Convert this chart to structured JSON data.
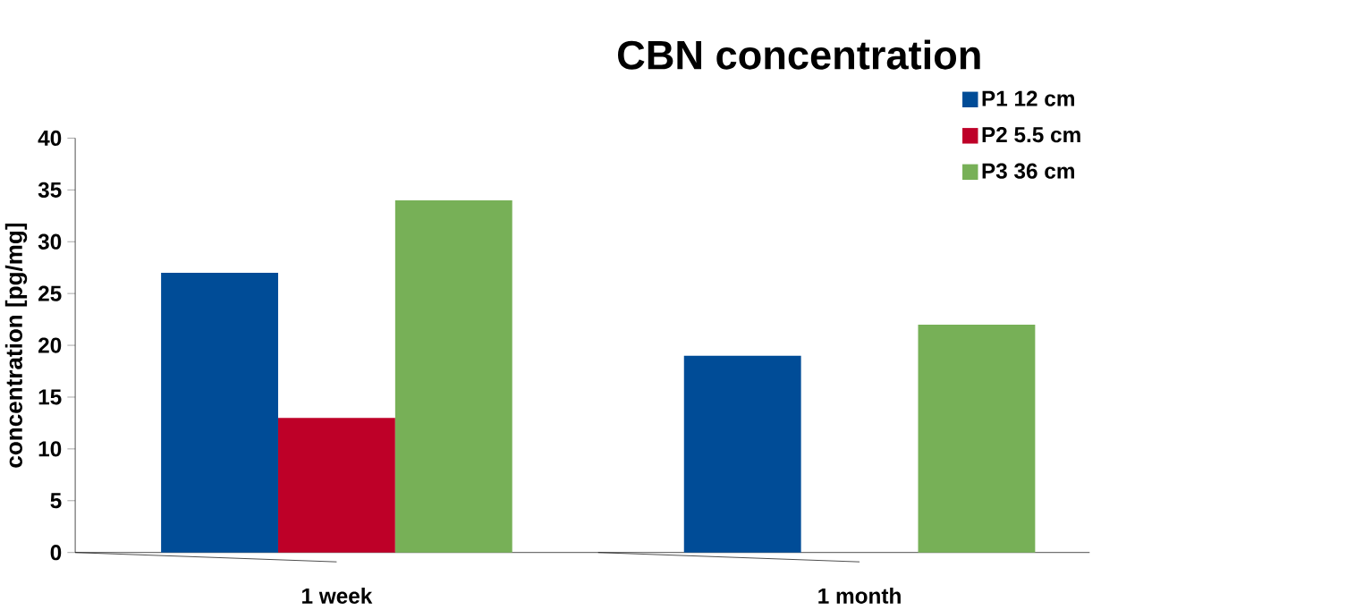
{
  "chart_data": {
    "type": "bar",
    "title": "CBN concentration",
    "ylabel": "concentration [pg/mg]",
    "categories": [
      "1 week",
      "1 month"
    ],
    "series": [
      {
        "name": "P1 12 cm",
        "color": "#004c97",
        "values": [
          27,
          19
        ]
      },
      {
        "name": "P2 5.5 cm",
        "color": "#be0028",
        "values": [
          13,
          null
        ]
      },
      {
        "name": "P3 36 cm",
        "color": "#77b057",
        "values": [
          34,
          22
        ]
      }
    ],
    "ylim": [
      0,
      40
    ],
    "yticks": [
      0,
      5,
      10,
      15,
      20,
      25,
      30,
      35,
      40
    ],
    "legend": "top right"
  }
}
